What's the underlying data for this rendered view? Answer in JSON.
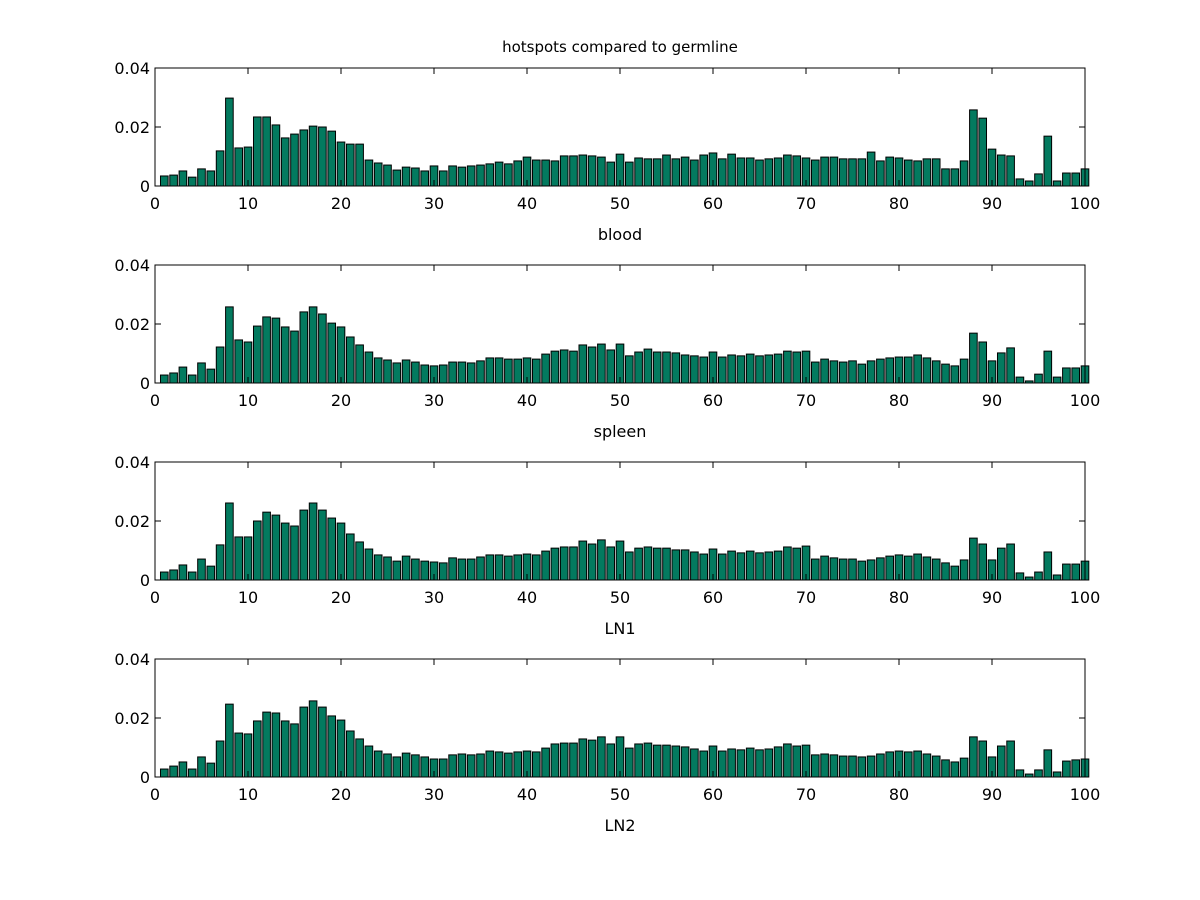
{
  "chart_data": {
    "type": "bar",
    "title": "hotspots compared to germline",
    "bar_color": "#037a5f",
    "edge_color": "#000000",
    "x": [
      1,
      2,
      3,
      4,
      5,
      6,
      7,
      8,
      9,
      10,
      11,
      12,
      13,
      14,
      15,
      16,
      17,
      18,
      19,
      20,
      21,
      22,
      23,
      24,
      25,
      26,
      27,
      28,
      29,
      30,
      31,
      32,
      33,
      34,
      35,
      36,
      37,
      38,
      39,
      40,
      41,
      42,
      43,
      44,
      45,
      46,
      47,
      48,
      49,
      50,
      51,
      52,
      53,
      54,
      55,
      56,
      57,
      58,
      59,
      60,
      61,
      62,
      63,
      64,
      65,
      66,
      67,
      68,
      69,
      70,
      71,
      72,
      73,
      74,
      75,
      76,
      77,
      78,
      79,
      80,
      81,
      82,
      83,
      84,
      85,
      86,
      87,
      88,
      89,
      90,
      91,
      92,
      93,
      94,
      95,
      96,
      97,
      98,
      99,
      100
    ],
    "xlim": [
      0,
      100
    ],
    "ylim": [
      0,
      0.04
    ],
    "xticks": [
      "0",
      "10",
      "20",
      "30",
      "40",
      "50",
      "60",
      "70",
      "80",
      "90",
      "100"
    ],
    "yticks": [
      "0",
      "0.02",
      "0.04"
    ],
    "grid": false,
    "subplots": [
      {
        "xlabel": "blood",
        "values": [
          0.0034,
          0.0037,
          0.0051,
          0.003,
          0.0058,
          0.0051,
          0.0119,
          0.0298,
          0.0129,
          0.0132,
          0.0234,
          0.0234,
          0.0207,
          0.0163,
          0.0176,
          0.019,
          0.0203,
          0.02,
          0.0186,
          0.0149,
          0.0142,
          0.0142,
          0.0088,
          0.0078,
          0.0071,
          0.0054,
          0.0064,
          0.0061,
          0.0051,
          0.0068,
          0.0051,
          0.0068,
          0.0064,
          0.0068,
          0.0071,
          0.0075,
          0.0081,
          0.0075,
          0.0085,
          0.0098,
          0.0088,
          0.0088,
          0.0085,
          0.0102,
          0.0102,
          0.0105,
          0.0102,
          0.0098,
          0.0081,
          0.0108,
          0.0081,
          0.0095,
          0.0092,
          0.0092,
          0.0105,
          0.0092,
          0.0098,
          0.0088,
          0.0105,
          0.0112,
          0.0092,
          0.0108,
          0.0095,
          0.0095,
          0.0088,
          0.0092,
          0.0095,
          0.0105,
          0.0102,
          0.0095,
          0.0088,
          0.0098,
          0.0098,
          0.0092,
          0.0092,
          0.0092,
          0.0115,
          0.0085,
          0.0098,
          0.0095,
          0.0088,
          0.0085,
          0.0092,
          0.0092,
          0.0058,
          0.0058,
          0.0085,
          0.0258,
          0.023,
          0.0125,
          0.0105,
          0.0102,
          0.0024,
          0.0017,
          0.0041,
          0.0169,
          0.0017,
          0.0044,
          0.0044,
          0.0058
        ]
      },
      {
        "xlabel": "spleen",
        "values": [
          0.0027,
          0.0034,
          0.0054,
          0.0027,
          0.0068,
          0.0047,
          0.0122,
          0.0258,
          0.0146,
          0.0139,
          0.0193,
          0.0224,
          0.022,
          0.019,
          0.0176,
          0.0241,
          0.0258,
          0.0234,
          0.0203,
          0.019,
          0.0156,
          0.0129,
          0.0105,
          0.0085,
          0.0078,
          0.0068,
          0.0078,
          0.0071,
          0.0061,
          0.0058,
          0.0061,
          0.0071,
          0.0071,
          0.0068,
          0.0075,
          0.0085,
          0.0085,
          0.0081,
          0.0081,
          0.0085,
          0.0081,
          0.0098,
          0.0108,
          0.0112,
          0.0108,
          0.0129,
          0.0122,
          0.0132,
          0.0112,
          0.0132,
          0.0092,
          0.0105,
          0.0115,
          0.0105,
          0.0105,
          0.0102,
          0.0095,
          0.0092,
          0.0088,
          0.0105,
          0.0088,
          0.0095,
          0.0092,
          0.0098,
          0.0092,
          0.0095,
          0.0098,
          0.0108,
          0.0105,
          0.0108,
          0.0071,
          0.0081,
          0.0075,
          0.0071,
          0.0075,
          0.0064,
          0.0075,
          0.0081,
          0.0085,
          0.0088,
          0.0088,
          0.0095,
          0.0085,
          0.0075,
          0.0064,
          0.0058,
          0.0081,
          0.0169,
          0.0139,
          0.0075,
          0.0102,
          0.0119,
          0.002,
          0.0007,
          0.003,
          0.0108,
          0.002,
          0.0051,
          0.0051,
          0.0058
        ]
      },
      {
        "xlabel": "LN1",
        "values": [
          0.0027,
          0.0034,
          0.0051,
          0.0027,
          0.0071,
          0.0047,
          0.0119,
          0.0261,
          0.0146,
          0.0146,
          0.02,
          0.023,
          0.022,
          0.0193,
          0.0183,
          0.0237,
          0.0261,
          0.0237,
          0.021,
          0.0193,
          0.0156,
          0.0129,
          0.0105,
          0.0085,
          0.0078,
          0.0064,
          0.0081,
          0.0071,
          0.0064,
          0.0061,
          0.0058,
          0.0075,
          0.0071,
          0.0071,
          0.0078,
          0.0085,
          0.0085,
          0.0081,
          0.0085,
          0.0088,
          0.0085,
          0.0098,
          0.0108,
          0.0112,
          0.0112,
          0.0132,
          0.0122,
          0.0136,
          0.0112,
          0.0132,
          0.0095,
          0.0108,
          0.0112,
          0.0108,
          0.0108,
          0.0102,
          0.0102,
          0.0095,
          0.0088,
          0.0105,
          0.0088,
          0.0098,
          0.0092,
          0.0098,
          0.0092,
          0.0095,
          0.0098,
          0.0112,
          0.0108,
          0.0115,
          0.0071,
          0.0081,
          0.0075,
          0.0071,
          0.0071,
          0.0064,
          0.0068,
          0.0075,
          0.0081,
          0.0085,
          0.0081,
          0.0088,
          0.0078,
          0.0071,
          0.0058,
          0.0047,
          0.0068,
          0.0142,
          0.0122,
          0.0068,
          0.0108,
          0.0122,
          0.0024,
          0.001,
          0.0027,
          0.0095,
          0.0017,
          0.0054,
          0.0054,
          0.0064
        ]
      },
      {
        "xlabel": "LN2",
        "values": [
          0.0027,
          0.0037,
          0.0051,
          0.0027,
          0.0068,
          0.0047,
          0.0122,
          0.0247,
          0.0149,
          0.0146,
          0.019,
          0.022,
          0.0217,
          0.019,
          0.018,
          0.0237,
          0.0258,
          0.0237,
          0.0207,
          0.0193,
          0.0156,
          0.0129,
          0.0105,
          0.0088,
          0.0078,
          0.0068,
          0.0081,
          0.0075,
          0.0068,
          0.0061,
          0.0061,
          0.0075,
          0.0078,
          0.0075,
          0.0078,
          0.0088,
          0.0085,
          0.0081,
          0.0085,
          0.0088,
          0.0085,
          0.0098,
          0.0112,
          0.0115,
          0.0115,
          0.0129,
          0.0125,
          0.0136,
          0.0112,
          0.0136,
          0.0098,
          0.0112,
          0.0115,
          0.0108,
          0.0108,
          0.0105,
          0.0102,
          0.0095,
          0.0088,
          0.0105,
          0.0088,
          0.0095,
          0.0092,
          0.0098,
          0.0092,
          0.0095,
          0.0102,
          0.0112,
          0.0105,
          0.0108,
          0.0075,
          0.0078,
          0.0075,
          0.0071,
          0.0071,
          0.0068,
          0.0071,
          0.0078,
          0.0085,
          0.0088,
          0.0085,
          0.0088,
          0.0078,
          0.0071,
          0.0058,
          0.0051,
          0.0064,
          0.0136,
          0.0122,
          0.0068,
          0.0105,
          0.0122,
          0.0024,
          0.001,
          0.0024,
          0.0092,
          0.0017,
          0.0054,
          0.0058,
          0.0061
        ]
      }
    ]
  }
}
